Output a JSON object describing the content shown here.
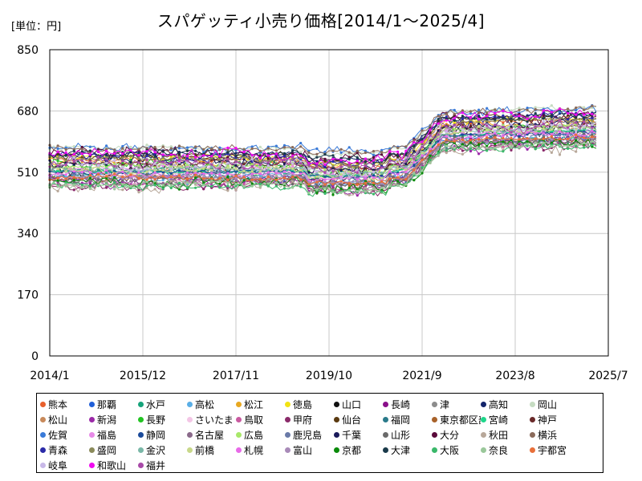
{
  "chart_data": {
    "type": "line",
    "title": "スパゲッティ小売り価格[2014/1～2025/4]",
    "unit_label": "[単位：円]",
    "xlabel": "",
    "ylabel": "",
    "ylim": [
      0,
      850
    ],
    "y_ticks": [
      0,
      170,
      340,
      510,
      680,
      850
    ],
    "x_ticks": [
      "2014/1",
      "2015/12",
      "2017/11",
      "2019/10",
      "2021/9",
      "2023/8",
      "2025/7"
    ],
    "x_start": "2014/1",
    "x_end": "2025/4",
    "grid": true,
    "legend_position": "bottom",
    "series": [
      {
        "name": "熊本",
        "color": "#e8602c"
      },
      {
        "name": "那覇",
        "color": "#1f5fd8"
      },
      {
        "name": "水戸",
        "color": "#16a37a"
      },
      {
        "name": "高松",
        "color": "#5aaee6"
      },
      {
        "name": "松江",
        "color": "#e8a821"
      },
      {
        "name": "徳島",
        "color": "#f2e313"
      },
      {
        "name": "山口",
        "color": "#111111"
      },
      {
        "name": "長崎",
        "color": "#8a0f8a"
      },
      {
        "name": "津",
        "color": "#8c8c8c"
      },
      {
        "name": "高知",
        "color": "#14256b"
      },
      {
        "name": "岡山",
        "color": "#c6dcc2"
      },
      {
        "name": "松山",
        "color": "#c8895a"
      },
      {
        "name": "新潟",
        "color": "#9b2aa8"
      },
      {
        "name": "長野",
        "color": "#22c422"
      },
      {
        "name": "さいたま",
        "color": "#f3c6e6"
      },
      {
        "name": "鳥取",
        "color": "#c95aa0"
      },
      {
        "name": "甲府",
        "color": "#8a2a6a"
      },
      {
        "name": "仙台",
        "color": "#5a3a10"
      },
      {
        "name": "福岡",
        "color": "#2a7a8a"
      },
      {
        "name": "東京都区部",
        "color": "#a8622a"
      },
      {
        "name": "宮崎",
        "color": "#1ed68a"
      },
      {
        "name": "神戸",
        "color": "#6a2a2a"
      },
      {
        "name": "佐賀",
        "color": "#3a7ad8"
      },
      {
        "name": "福島",
        "color": "#e88ae8"
      },
      {
        "name": "静岡",
        "color": "#1a4a9a"
      },
      {
        "name": "名古屋",
        "color": "#8a6a8a"
      },
      {
        "name": "広島",
        "color": "#a8e86a"
      },
      {
        "name": "鹿児島",
        "color": "#6a7aa8"
      },
      {
        "name": "千葉",
        "color": "#1a1a5a"
      },
      {
        "name": "山形",
        "color": "#6a6a6a"
      },
      {
        "name": "大分",
        "color": "#5a0a3a"
      },
      {
        "name": "秋田",
        "color": "#b8a89a"
      },
      {
        "name": "横浜",
        "color": "#8a6a5a"
      },
      {
        "name": "青森",
        "color": "#2a2aa8"
      },
      {
        "name": "盛岡",
        "color": "#8a8a5a"
      },
      {
        "name": "金沢",
        "color": "#7ab8a8"
      },
      {
        "name": "前橋",
        "color": "#c8d88a"
      },
      {
        "name": "札幌",
        "color": "#e86ae8"
      },
      {
        "name": "富山",
        "color": "#a88ab8"
      },
      {
        "name": "京都",
        "color": "#0a8a0a"
      },
      {
        "name": "大津",
        "color": "#1a3a4a"
      },
      {
        "name": "大阪",
        "color": "#3ab86a"
      },
      {
        "name": "奈良",
        "color": "#9ac89a"
      },
      {
        "name": "宇都宮",
        "color": "#e8703a"
      },
      {
        "name": "岐阜",
        "color": "#c8b8e8"
      },
      {
        "name": "和歌山",
        "color": "#f00af0"
      },
      {
        "name": "福井",
        "color": "#a84aa8"
      }
    ]
  }
}
